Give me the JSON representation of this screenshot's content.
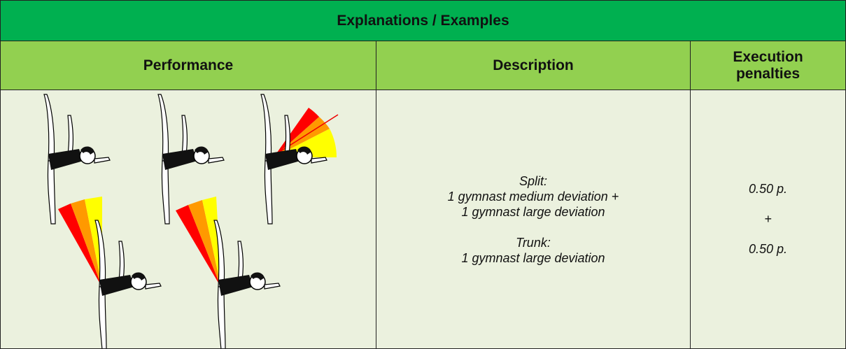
{
  "header": {
    "title": "Explanations / Examples"
  },
  "table": {
    "columns": [
      "Performance",
      "Description",
      "Execution penalties"
    ],
    "rows": [
      {
        "description": [
          "Split:",
          "1 gymnast medium deviation +",
          "1 gymnast large deviation",
          "Trunk:",
          "1 gymnast large deviation"
        ],
        "penalties": [
          "0.50 p.",
          "+",
          "0.50 p."
        ]
      }
    ]
  }
}
